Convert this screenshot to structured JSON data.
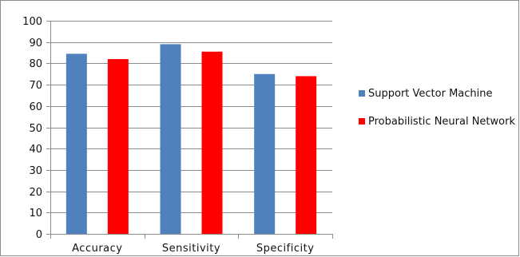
{
  "chart_data": {
    "type": "bar",
    "categories": [
      "Accuracy",
      "Sensitivity",
      "Specificity"
    ],
    "series": [
      {
        "name": "Support Vector Machine",
        "color": "#4f81bd",
        "values": [
          84.5,
          89,
          75
        ]
      },
      {
        "name": "Probabilistic Neural Network",
        "color": "#ff0000",
        "values": [
          82,
          85.5,
          74
        ]
      }
    ],
    "ylim": [
      0,
      100
    ],
    "yticks": [
      "0",
      "10",
      "20",
      "30",
      "40",
      "50",
      "60",
      "70",
      "80",
      "90",
      "100"
    ],
    "grid": true,
    "legend_position": "right"
  }
}
